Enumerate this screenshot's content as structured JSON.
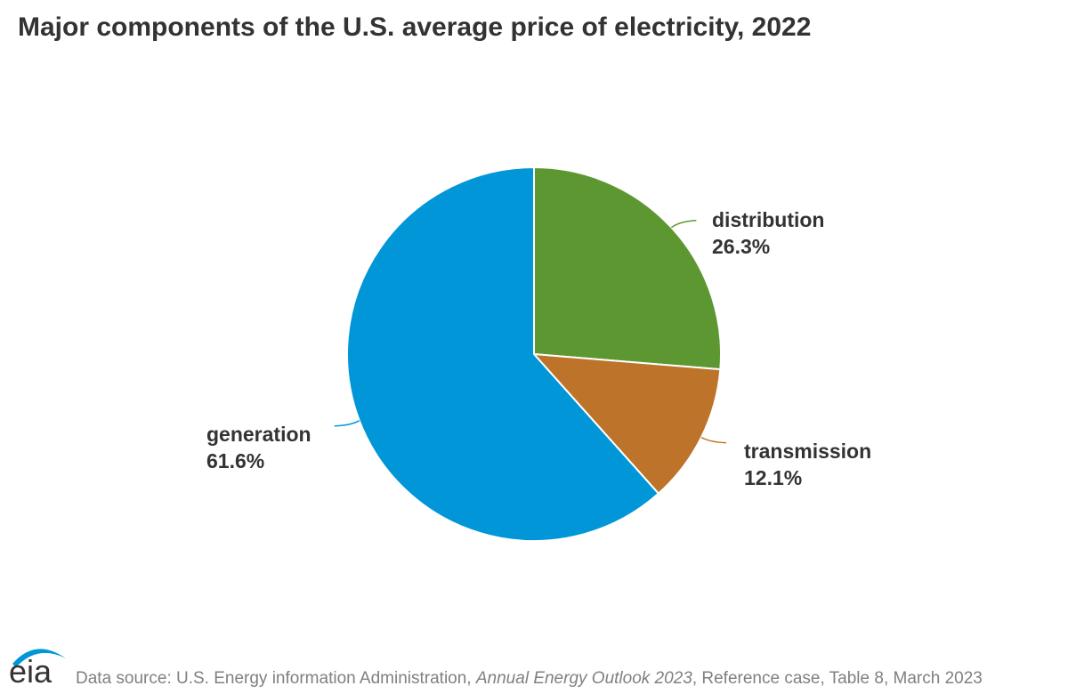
{
  "title": "Major components of the U.S. average price of electricity, 2022",
  "chart_data": {
    "type": "pie",
    "title": "Major components of the U.S. average price of electricity, 2022",
    "unit": "%",
    "slices": [
      {
        "label": "distribution",
        "value": 26.3,
        "value_label": "26.3%",
        "color": "#5d9732"
      },
      {
        "label": "transmission",
        "value": 12.1,
        "value_label": "12.1%",
        "color": "#bd732a"
      },
      {
        "label": "generation",
        "value": 61.6,
        "value_label": "61.6%",
        "color": "#0096d7"
      }
    ],
    "start": "12 o'clock",
    "direction": "clockwise"
  },
  "footer": {
    "logo_text": "eia",
    "source_prefix": "Data source: U.S. Energy information Administration, ",
    "source_italic": "Annual Energy Outlook 2023",
    "source_suffix": ", Reference case, Table 8, March 2023"
  },
  "colors": {
    "text": "#333333",
    "source_text": "#808080",
    "logo_blue": "#0096d7"
  }
}
